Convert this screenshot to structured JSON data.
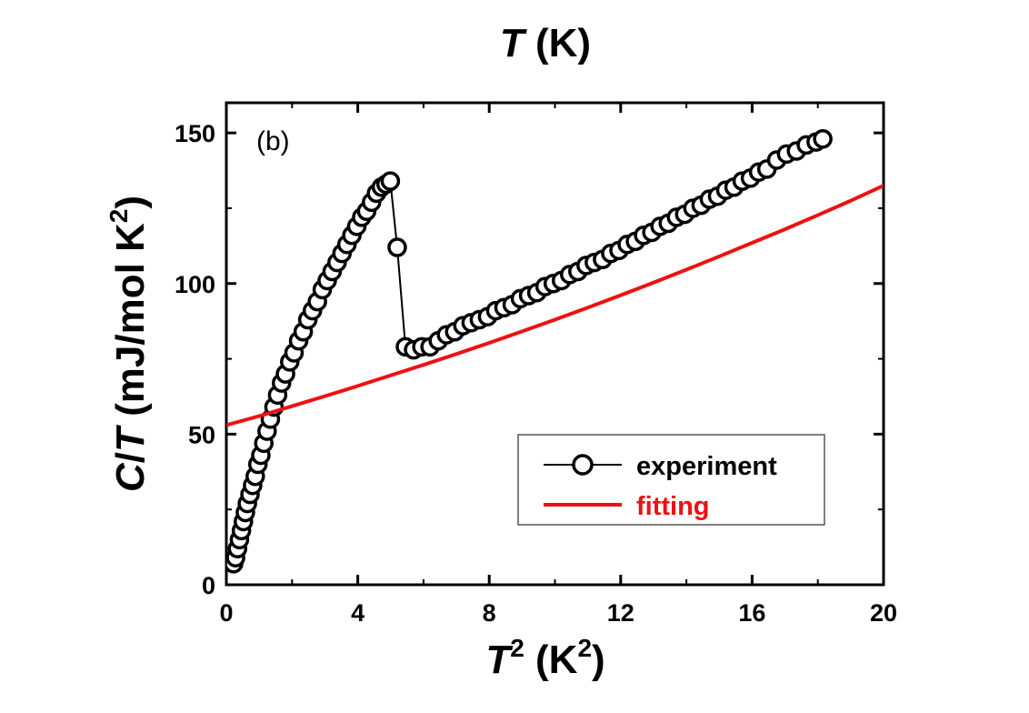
{
  "chart_data": {
    "type": "scatter",
    "panel_label": "(b)",
    "top_axis_label": {
      "main": "T",
      "rest": " (K)"
    },
    "xlabel": {
      "main": "T",
      "sup": "2",
      "rest": " (K",
      "sup2": "2",
      "close": ")"
    },
    "ylabel": {
      "main": "C",
      "slash": "/",
      "main2": "T",
      "rest": " (mJ/mol K",
      "sup": "2",
      "close": ")"
    },
    "xlim": [
      0,
      20
    ],
    "ylim": [
      0,
      160
    ],
    "xticks": [
      0,
      4,
      8,
      12,
      16,
      20
    ],
    "yticks": [
      0,
      50,
      100,
      150
    ],
    "legend": {
      "position": "bottom-right",
      "entries": [
        "experiment",
        "fitting"
      ]
    },
    "series": [
      {
        "name": "experiment",
        "style": "line-with-open-circles",
        "color": "#000000",
        "x": [
          0.22,
          0.28,
          0.34,
          0.4,
          0.46,
          0.52,
          0.58,
          0.64,
          0.72,
          0.8,
          0.88,
          0.96,
          1.05,
          1.14,
          1.24,
          1.34,
          1.45,
          1.56,
          1.68,
          1.8,
          1.93,
          2.06,
          2.2,
          2.34,
          2.48,
          2.62,
          2.77,
          2.92,
          3.07,
          3.22,
          3.37,
          3.52,
          3.67,
          3.82,
          3.97,
          4.12,
          4.27,
          4.42,
          4.57,
          4.72,
          4.86,
          4.99,
          5.2,
          5.45,
          5.7,
          5.95,
          6.2,
          6.45,
          6.7,
          6.95,
          7.2,
          7.45,
          7.7,
          7.95,
          8.2,
          8.45,
          8.7,
          8.95,
          9.2,
          9.45,
          9.7,
          9.95,
          10.2,
          10.45,
          10.7,
          10.95,
          11.2,
          11.45,
          11.7,
          11.95,
          12.2,
          12.45,
          12.7,
          12.95,
          13.2,
          13.45,
          13.7,
          13.95,
          14.2,
          14.45,
          14.7,
          14.95,
          15.2,
          15.45,
          15.7,
          15.95,
          16.2,
          16.45,
          16.75,
          17.05,
          17.35,
          17.65,
          17.95,
          18.15
        ],
        "y": [
          7,
          9,
          12,
          15,
          18,
          21,
          24,
          27,
          30,
          33,
          36,
          40,
          43,
          47,
          51,
          55,
          59,
          63,
          67,
          70,
          74,
          77,
          81,
          84,
          88,
          91,
          94,
          98,
          101,
          104,
          107,
          110,
          113,
          116,
          119,
          122,
          124,
          127,
          130,
          132,
          133,
          134,
          112,
          79,
          78,
          79,
          79,
          81,
          83,
          84,
          86,
          87,
          88,
          89,
          91,
          92,
          93,
          95,
          96,
          97,
          99,
          100,
          101,
          103,
          104,
          106,
          107,
          108,
          110,
          111,
          113,
          114,
          116,
          117,
          119,
          120,
          122,
          123,
          125,
          126,
          128,
          129,
          131,
          132,
          134,
          135,
          137,
          138,
          141,
          143,
          144,
          146,
          147,
          148
        ]
      },
      {
        "name": "fitting",
        "style": "line",
        "color": "#ee1111",
        "x": [
          0,
          1,
          2,
          3,
          4,
          5,
          6,
          7,
          8,
          9,
          10,
          11,
          12,
          13,
          14,
          15,
          16,
          17,
          18,
          19,
          20
        ],
        "y": [
          53,
          56,
          59.3,
          62.6,
          66,
          69.5,
          73,
          76.6,
          80.3,
          84.1,
          88,
          92,
          96.1,
          100.3,
          104.6,
          109,
          113.5,
          118,
          122.7,
          127.5,
          132.5
        ]
      }
    ]
  }
}
